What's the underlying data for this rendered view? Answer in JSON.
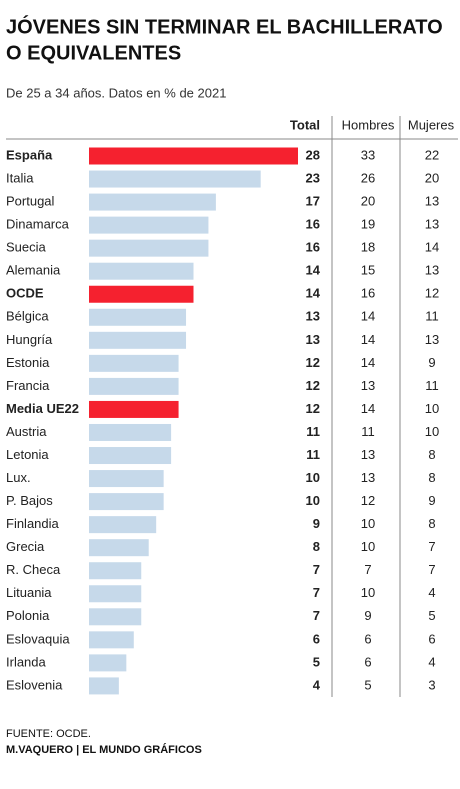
{
  "chart_data": {
    "type": "bar",
    "title_lines": [
      "JÓVENES SIN TERMINAR EL BACHILLERATO",
      "O EQUIVALENTES"
    ],
    "subtitle": "De 25 a 34 años. Datos en % de 2021",
    "columns": [
      "Total",
      "Hombres",
      "Mujeres"
    ],
    "categories": [
      "España",
      "Italia",
      "Portugal",
      "Dinamarca",
      "Suecia",
      "Alemania",
      "OCDE",
      "Bélgica",
      "Hungría",
      "Estonia",
      "Francia",
      "Media UE22",
      "Austria",
      "Letonia",
      "Lux.",
      "P. Bajos",
      "Finlandia",
      "Grecia",
      "R. Checa",
      "Lituania",
      "Polonia",
      "Eslovaquia",
      "Irlanda",
      "Eslovenia"
    ],
    "values": [
      28,
      23,
      17,
      16,
      16,
      14,
      14,
      13,
      13,
      12,
      12,
      12,
      11,
      11,
      10,
      10,
      9,
      8,
      7,
      7,
      7,
      6,
      5,
      4
    ],
    "hombres": [
      33,
      26,
      20,
      19,
      18,
      15,
      16,
      14,
      14,
      14,
      13,
      14,
      11,
      13,
      13,
      12,
      10,
      10,
      7,
      10,
      9,
      6,
      6,
      5
    ],
    "mujeres": [
      22,
      20,
      13,
      13,
      14,
      13,
      12,
      11,
      13,
      9,
      11,
      10,
      10,
      8,
      8,
      9,
      8,
      7,
      7,
      4,
      5,
      6,
      4,
      3
    ],
    "color": "#c6d9ea",
    "highlight_color": "#f5212f",
    "highlight": [
      "España",
      "OCDE",
      "Media UE22"
    ],
    "source": "FUENTE: OCDE.",
    "credit": "M.VAQUERO | EL MUNDO GRÁFICOS"
  }
}
